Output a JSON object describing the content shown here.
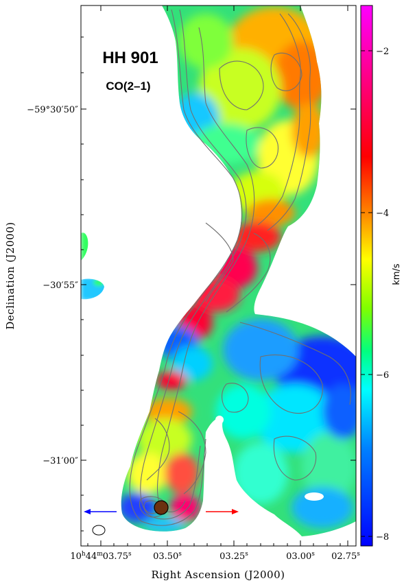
{
  "figure": {
    "title": "HH 901",
    "subtitle": "CO(2–1)",
    "x_axis_title": "Right Ascension (J2000)",
    "y_axis_title": "Declination (J2000)",
    "x_ticks": [
      {
        "h": "10",
        "hs": "h",
        "m": "44",
        "ms": "m",
        "s": "03.75",
        "ss": "s"
      },
      {
        "s": "03.50",
        "ss": "s"
      },
      {
        "s": "03.25",
        "ss": "s"
      },
      {
        "s": "03.00",
        "ss": "s"
      },
      {
        "s": "02.75",
        "ss": "s"
      }
    ],
    "y_ticks": [
      {
        "label": "−59°30′50″"
      },
      {
        "label": "−30′55″"
      },
      {
        "label": "−31′00″"
      }
    ],
    "colorbar": {
      "unit": "km/s",
      "ticks": [
        "−2",
        "−4",
        "−6",
        "−8"
      ],
      "colors": [
        "#ff00ff",
        "#ff0080",
        "#ff0000",
        "#ff8000",
        "#ffff00",
        "#80ff00",
        "#00ff80",
        "#00ffff",
        "#0080ff",
        "#0000ff"
      ]
    },
    "outflow_arrows": {
      "blue_color": "#0000ff",
      "red_color": "#ff0000"
    },
    "source_marker_color": "#6b3010"
  }
}
